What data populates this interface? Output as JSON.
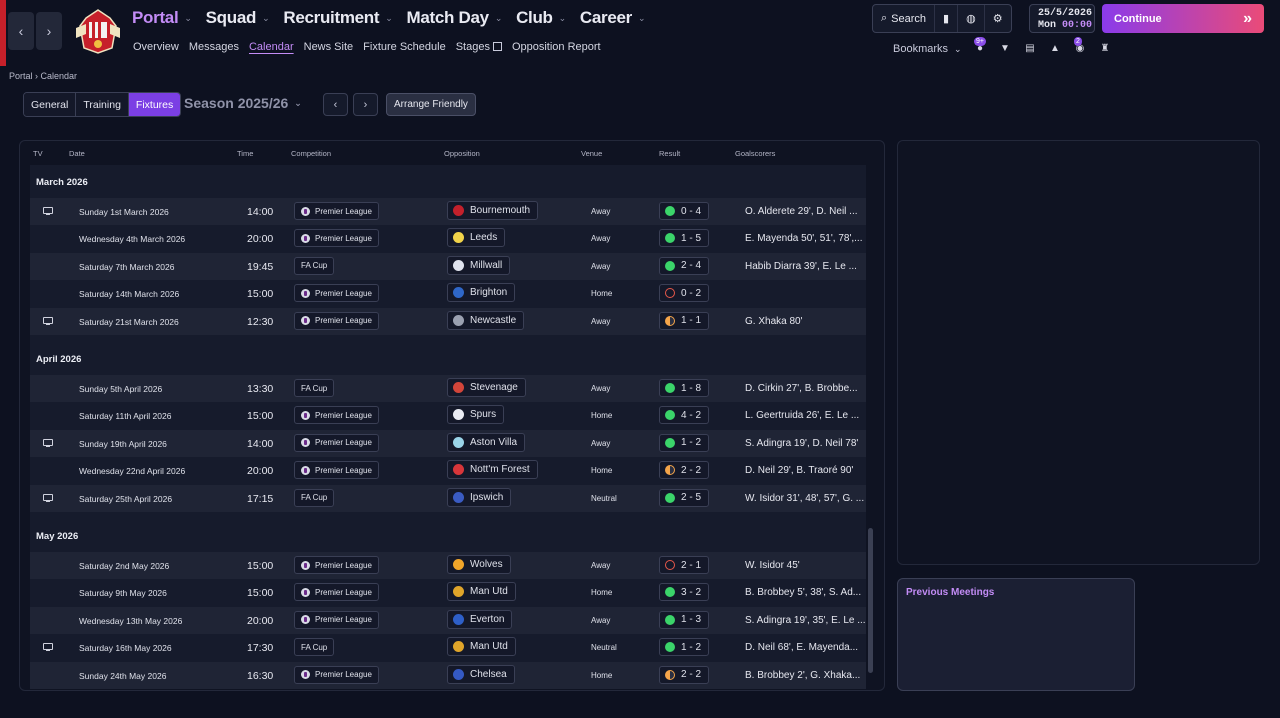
{
  "header": {
    "main_nav": [
      {
        "label": "Portal",
        "active": true
      },
      {
        "label": "Squad"
      },
      {
        "label": "Recruitment"
      },
      {
        "label": "Match Day"
      },
      {
        "label": "Club"
      },
      {
        "label": "Career"
      }
    ],
    "sub_nav": [
      "Overview",
      "Messages",
      "Calendar",
      "News Site",
      "Fixture Schedule",
      "Stages",
      "Opposition Report"
    ],
    "search_label": "Search",
    "date": "25/5/2026",
    "weekday": "Mon",
    "time": "00:00",
    "continue_label": "Continue",
    "bookmarks_label": "Bookmarks",
    "mail_badge": "9+",
    "notif_badge": "2"
  },
  "breadcrumb": {
    "root": "Portal",
    "current": "Calendar"
  },
  "tabs": [
    "General",
    "Training",
    "Fixtures"
  ],
  "season_label": "Season 2025/26",
  "arrange_friendly_label": "Arrange Friendly",
  "table": {
    "headers": [
      "TV",
      "Date",
      "Time",
      "Competition",
      "Opposition",
      "Venue",
      "Result",
      "Goalscorers"
    ],
    "months": [
      {
        "label": "March 2026",
        "fixtures": [
          {
            "tv": true,
            "date": "Sunday 1st March 2026",
            "time": "14:00",
            "competition": "Premier League",
            "opposition": "Bournemouth",
            "crest": "#c3202b",
            "venue": "Away",
            "result": "0 - 4",
            "outcome": "W",
            "scorers": "O. Alderete 29', D. Neil ..."
          },
          {
            "tv": false,
            "date": "Wednesday 4th March 2026",
            "time": "20:00",
            "competition": "Premier League",
            "opposition": "Leeds",
            "crest": "#f1d34a",
            "venue": "Away",
            "result": "1 - 5",
            "outcome": "W",
            "scorers": "E. Mayenda 50', 51', 78',..."
          },
          {
            "tv": false,
            "date": "Saturday 7th March 2026",
            "time": "19:45",
            "competition": "FA Cup",
            "opposition": "Millwall",
            "crest": "#dfe3ee",
            "venue": "Away",
            "result": "2 - 4",
            "outcome": "W",
            "scorers": "Habib Diarra 39', E. Le ..."
          },
          {
            "tv": false,
            "date": "Saturday 14th March 2026",
            "time": "15:00",
            "competition": "Premier League",
            "opposition": "Brighton",
            "crest": "#2f67c8",
            "venue": "Home",
            "result": "0 - 2",
            "outcome": "L",
            "scorers": ""
          },
          {
            "tv": true,
            "date": "Saturday 21st March 2026",
            "time": "12:30",
            "competition": "Premier League",
            "opposition": "Newcastle",
            "crest": "#9aa0b0",
            "venue": "Away",
            "result": "1 - 1",
            "outcome": "D",
            "scorers": "G. Xhaka 80'"
          }
        ]
      },
      {
        "label": "April 2026",
        "fixtures": [
          {
            "tv": false,
            "date": "Sunday 5th April 2026",
            "time": "13:30",
            "competition": "FA Cup",
            "opposition": "Stevenage",
            "crest": "#d2453a",
            "venue": "Away",
            "result": "1 - 8",
            "outcome": "W",
            "scorers": "D. Cirkin 27', B. Brobbe..."
          },
          {
            "tv": false,
            "date": "Saturday 11th April 2026",
            "time": "15:00",
            "competition": "Premier League",
            "opposition": "Spurs",
            "crest": "#e9ebf2",
            "venue": "Home",
            "result": "4 - 2",
            "outcome": "W",
            "scorers": "L. Geertruida 26', E. Le ..."
          },
          {
            "tv": true,
            "date": "Sunday 19th April 2026",
            "time": "14:00",
            "competition": "Premier League",
            "opposition": "Aston Villa",
            "crest": "#9ad4e8",
            "venue": "Away",
            "result": "1 - 2",
            "outcome": "W",
            "scorers": "S. Adingra 19', D. Neil 78'"
          },
          {
            "tv": false,
            "date": "Wednesday 22nd April 2026",
            "time": "20:00",
            "competition": "Premier League",
            "opposition": "Nott'm Forest",
            "crest": "#d8363a",
            "venue": "Home",
            "result": "2 - 2",
            "outcome": "D",
            "scorers": "D. Neil 29', B. Traoré 90'"
          },
          {
            "tv": true,
            "date": "Saturday 25th April 2026",
            "time": "17:15",
            "competition": "FA Cup",
            "opposition": "Ipswich",
            "crest": "#3a5bc2",
            "venue": "Neutral",
            "result": "2 - 5",
            "outcome": "W",
            "scorers": "W. Isidor 31', 48', 57', G. ..."
          }
        ]
      },
      {
        "label": "May 2026",
        "fixtures": [
          {
            "tv": false,
            "date": "Saturday 2nd May 2026",
            "time": "15:00",
            "competition": "Premier League",
            "opposition": "Wolves",
            "crest": "#f0a52a",
            "venue": "Away",
            "result": "2 - 1",
            "outcome": "L",
            "scorers": "W. Isidor 45'"
          },
          {
            "tv": false,
            "date": "Saturday 9th May 2026",
            "time": "15:00",
            "competition": "Premier League",
            "opposition": "Man Utd",
            "crest": "#e0a52a",
            "venue": "Home",
            "result": "3 - 2",
            "outcome": "W",
            "scorers": "B. Brobbey 5', 38', S. Ad..."
          },
          {
            "tv": false,
            "date": "Wednesday 13th May 2026",
            "time": "20:00",
            "competition": "Premier League",
            "opposition": "Everton",
            "crest": "#2e5fc8",
            "venue": "Away",
            "result": "1 - 3",
            "outcome": "W",
            "scorers": "S. Adingra 19', 35', E. Le ..."
          },
          {
            "tv": true,
            "date": "Saturday 16th May 2026",
            "time": "17:30",
            "competition": "FA Cup",
            "opposition": "Man Utd",
            "crest": "#e0a52a",
            "venue": "Neutral",
            "result": "1 - 2",
            "outcome": "W",
            "scorers": "D. Neil 68', E. Mayenda..."
          },
          {
            "tv": false,
            "date": "Sunday 24th May 2026",
            "time": "16:30",
            "competition": "Premier League",
            "opposition": "Chelsea",
            "crest": "#3459c4",
            "venue": "Home",
            "result": "2 - 2",
            "outcome": "D",
            "scorers": "B. Brobbey 2', G. Xhaka..."
          }
        ]
      }
    ]
  },
  "previous_meetings_title": "Previous Meetings"
}
